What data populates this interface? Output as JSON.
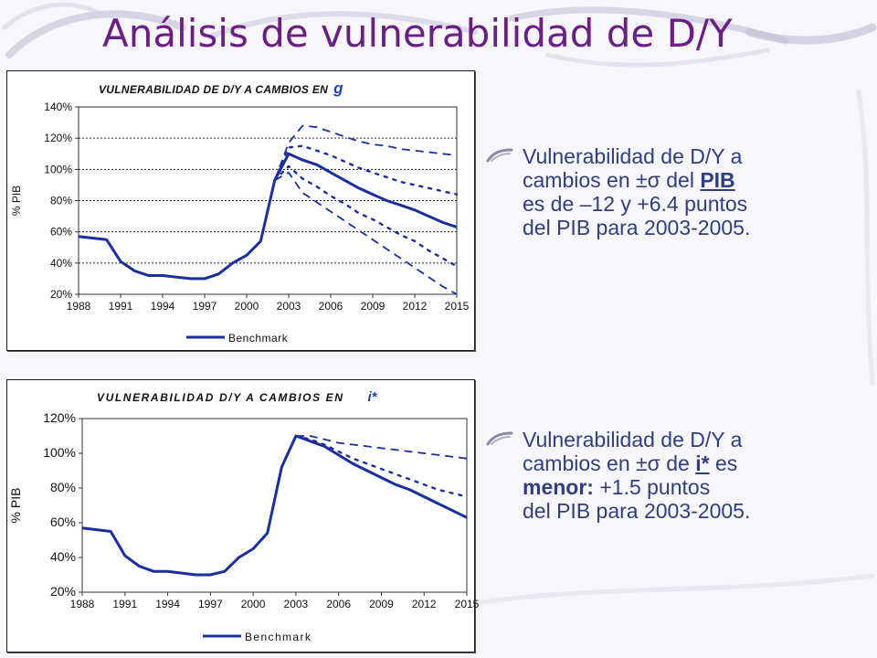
{
  "slide": {
    "title": "Análisis de vulnerabilidad de D/Y"
  },
  "colors": {
    "title": "#6b1f84",
    "series": "#1a2e9e",
    "text": "#2f3e80",
    "var_label": "#1f3fbf"
  },
  "bullets": [
    {
      "line1": "Vulnerabilidad de D/Y a",
      "line2_pre": "cambios en ",
      "sigma": "±σ",
      "line2_mid": " del ",
      "key": "PIB",
      "line3": "es de –12 y +6.4 puntos",
      "line4": "del PIB para 2003-2005."
    },
    {
      "line1": "Vulnerabilidad de D/Y a",
      "line2_pre": "cambios en ",
      "sigma": "±σ",
      "line2_mid": " de ",
      "key": "i*",
      "line2_post": " es",
      "strong": "menor:",
      "line3_post": " +1.5 puntos",
      "line4": "del PIB para 2003-2005."
    }
  ],
  "chart_data": [
    {
      "type": "line",
      "title": "VULNERABILIDAD DE D/Y A CAMBIOS EN",
      "title_var": "g",
      "ylabel": "% PIB",
      "xlabel": "",
      "x_ticks": [
        "1988",
        "1991",
        "1994",
        "1997",
        "2000",
        "2003",
        "2006",
        "2009",
        "2012",
        "2015"
      ],
      "y_ticks": [
        "20%",
        "40%",
        "60%",
        "80%",
        "100%",
        "120%",
        "140%"
      ],
      "xlim": [
        1988,
        2015
      ],
      "ylim": [
        20,
        140
      ],
      "grid": "horizontal dashed",
      "legend": {
        "position": "bottom",
        "label": "Benchmark"
      },
      "series": [
        {
          "name": "Benchmark",
          "style": "solid",
          "x": [
            1988,
            1989,
            1990,
            1991,
            1992,
            1993,
            1994,
            1995,
            1996,
            1997,
            1998,
            1999,
            2000,
            2001,
            2002,
            2003,
            2004,
            2005,
            2006,
            2007,
            2008,
            2009,
            2010,
            2011,
            2012,
            2013,
            2014,
            2015
          ],
          "values": [
            57,
            56,
            55,
            41,
            35,
            32,
            32,
            31,
            30,
            30,
            33,
            40,
            45,
            54,
            93,
            110,
            106,
            103,
            98,
            93,
            88,
            84,
            80,
            77,
            74,
            70,
            66,
            63
          ]
        },
        {
          "style": "dashed",
          "x": [
            2002,
            2003,
            2004,
            2005,
            2006,
            2007,
            2008,
            2009,
            2010,
            2011,
            2012,
            2013,
            2014,
            2015
          ],
          "values": [
            93,
            117,
            128,
            127,
            124,
            121,
            118,
            116,
            115,
            113,
            112,
            111,
            110,
            109
          ]
        },
        {
          "style": "dotted",
          "x": [
            2002,
            2003,
            2004,
            2005,
            2006,
            2007,
            2008,
            2009,
            2010,
            2011,
            2012,
            2013,
            2014,
            2015
          ],
          "values": [
            93,
            114,
            115,
            112,
            109,
            105,
            101,
            98,
            95,
            92,
            90,
            88,
            86,
            84
          ]
        },
        {
          "style": "dotted",
          "x": [
            2002,
            2003,
            2004,
            2005,
            2006,
            2007,
            2008,
            2009,
            2010,
            2011,
            2012,
            2013,
            2014,
            2015
          ],
          "values": [
            93,
            102,
            94,
            89,
            83,
            78,
            72,
            68,
            63,
            58,
            54,
            48,
            43,
            38
          ]
        },
        {
          "style": "dashed",
          "x": [
            2002,
            2003,
            2004,
            2005,
            2006,
            2007,
            2008,
            2009,
            2010,
            2011,
            2012,
            2013,
            2014,
            2015
          ],
          "values": [
            93,
            98,
            85,
            79,
            73,
            67,
            61,
            55,
            49,
            43,
            37,
            31,
            25,
            20
          ]
        }
      ]
    },
    {
      "type": "line",
      "title": "VULNERABILIDAD D/Y A CAMBIOS EN",
      "title_var": "i*",
      "ylabel": "% PIB",
      "xlabel": "",
      "x_ticks": [
        "1988",
        "1991",
        "1994",
        "1997",
        "2000",
        "2003",
        "2006",
        "2009",
        "2012",
        "2015"
      ],
      "y_ticks": [
        "20%",
        "40%",
        "60%",
        "80%",
        "100%",
        "120%"
      ],
      "xlim": [
        1988,
        2015
      ],
      "ylim": [
        20,
        120
      ],
      "grid": "none",
      "legend": {
        "position": "bottom",
        "label": "Benchmark"
      },
      "series": [
        {
          "name": "Benchmark",
          "style": "solid",
          "x": [
            1988,
            1989,
            1990,
            1991,
            1992,
            1993,
            1994,
            1995,
            1996,
            1997,
            1998,
            1999,
            2000,
            2001,
            2002,
            2003,
            2004,
            2005,
            2006,
            2007,
            2008,
            2009,
            2010,
            2011,
            2012,
            2013,
            2014,
            2015
          ],
          "values": [
            57,
            56,
            55,
            41,
            35,
            32,
            32,
            31,
            30,
            30,
            32,
            40,
            45,
            54,
            92,
            110,
            107,
            104,
            99,
            94,
            90,
            86,
            82,
            79,
            75,
            71,
            67,
            63
          ]
        },
        {
          "style": "dashed",
          "x": [
            2003,
            2004,
            2005,
            2006,
            2007,
            2008,
            2009,
            2010,
            2011,
            2012,
            2013,
            2014,
            2015
          ],
          "values": [
            110,
            110,
            108,
            106,
            105,
            104,
            103,
            102,
            101,
            100,
            99,
            98,
            97
          ]
        },
        {
          "style": "dotted",
          "x": [
            2003,
            2004,
            2005,
            2006,
            2007,
            2008,
            2009,
            2010,
            2011,
            2012,
            2013,
            2014,
            2015
          ],
          "values": [
            110,
            108,
            105,
            101,
            97,
            94,
            91,
            88,
            85,
            82,
            79,
            77,
            75
          ]
        }
      ]
    }
  ]
}
